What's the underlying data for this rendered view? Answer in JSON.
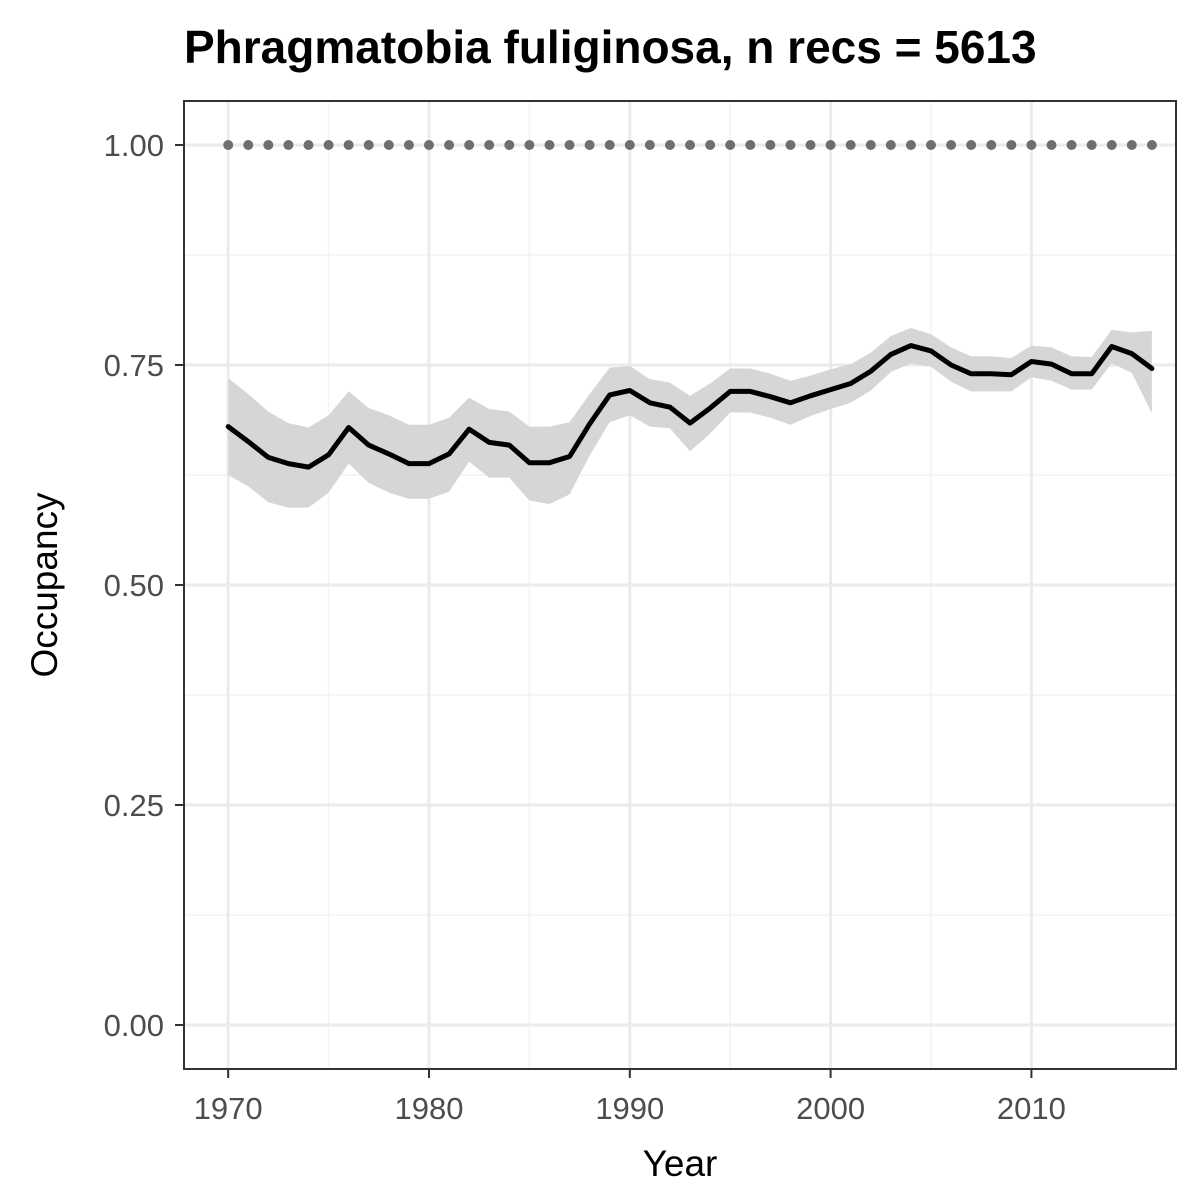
{
  "chart_data": {
    "type": "line",
    "title": "Phragmatobia fuliginosa, n recs = 5613",
    "xlabel": "Year",
    "ylabel": "Occupancy",
    "xlim": [
      1967.8,
      2017.2
    ],
    "ylim": [
      -0.05,
      1.05
    ],
    "x_ticks": [
      1970,
      1980,
      1990,
      2000,
      2010
    ],
    "y_ticks": [
      0.0,
      0.25,
      0.5,
      0.75,
      1.0
    ],
    "y_tick_labels": [
      "0.00",
      "0.25",
      "0.50",
      "0.75",
      "1.00"
    ],
    "grid": true,
    "theme": "bw",
    "colors": {
      "line": "#000000",
      "ribbon": "#d6d6d6",
      "dots": "#6e6e6e",
      "grid_major": "#ebebeb",
      "grid_minor": "#f3f3f3",
      "panel_border": "#333333"
    },
    "series": [
      {
        "role": "mean",
        "x": [
          1970,
          1971,
          1972,
          1973,
          1974,
          1975,
          1976,
          1977,
          1978,
          1979,
          1980,
          1981,
          1982,
          1983,
          1984,
          1985,
          1986,
          1987,
          1988,
          1989,
          1990,
          1991,
          1992,
          1993,
          1994,
          1995,
          1996,
          1997,
          1998,
          1999,
          2000,
          2001,
          2002,
          2003,
          2004,
          2005,
          2006,
          2007,
          2008,
          2009,
          2010,
          2011,
          2012,
          2013,
          2014,
          2015,
          2016
        ],
        "values": [
          0.68,
          0.663,
          0.645,
          0.638,
          0.634,
          0.648,
          0.679,
          0.659,
          0.649,
          0.638,
          0.638,
          0.649,
          0.677,
          0.662,
          0.659,
          0.639,
          0.639,
          0.646,
          0.683,
          0.716,
          0.721,
          0.707,
          0.702,
          0.684,
          0.701,
          0.72,
          0.72,
          0.714,
          0.707,
          0.715,
          0.722,
          0.729,
          0.743,
          0.762,
          0.772,
          0.766,
          0.75,
          0.74,
          0.74,
          0.739,
          0.754,
          0.751,
          0.74,
          0.74,
          0.771,
          0.763,
          0.746
        ]
      },
      {
        "role": "upper",
        "x": [
          1970,
          1971,
          1972,
          1973,
          1974,
          1975,
          1976,
          1977,
          1978,
          1979,
          1980,
          1981,
          1982,
          1983,
          1984,
          1985,
          1986,
          1987,
          1988,
          1989,
          1990,
          1991,
          1992,
          1993,
          1994,
          1995,
          1996,
          1997,
          1998,
          1999,
          2000,
          2001,
          2002,
          2003,
          2004,
          2005,
          2006,
          2007,
          2008,
          2009,
          2010,
          2011,
          2012,
          2013,
          2014,
          2015,
          2016
        ],
        "values": [
          0.735,
          0.717,
          0.697,
          0.684,
          0.679,
          0.693,
          0.72,
          0.701,
          0.693,
          0.682,
          0.682,
          0.69,
          0.713,
          0.7,
          0.697,
          0.68,
          0.68,
          0.685,
          0.717,
          0.747,
          0.749,
          0.734,
          0.73,
          0.715,
          0.729,
          0.746,
          0.746,
          0.74,
          0.732,
          0.738,
          0.745,
          0.751,
          0.764,
          0.783,
          0.792,
          0.785,
          0.77,
          0.76,
          0.76,
          0.758,
          0.772,
          0.77,
          0.76,
          0.759,
          0.79,
          0.787,
          0.789
        ]
      },
      {
        "role": "lower",
        "x": [
          1970,
          1971,
          1972,
          1973,
          1974,
          1975,
          1976,
          1977,
          1978,
          1979,
          1980,
          1981,
          1982,
          1983,
          1984,
          1985,
          1986,
          1987,
          1988,
          1989,
          1990,
          1991,
          1992,
          1993,
          1994,
          1995,
          1996,
          1997,
          1998,
          1999,
          2000,
          2001,
          2002,
          2003,
          2004,
          2005,
          2006,
          2007,
          2008,
          2009,
          2010,
          2011,
          2012,
          2013,
          2014,
          2015,
          2016
        ],
        "values": [
          0.625,
          0.612,
          0.594,
          0.588,
          0.588,
          0.605,
          0.638,
          0.616,
          0.605,
          0.598,
          0.598,
          0.606,
          0.64,
          0.622,
          0.622,
          0.596,
          0.592,
          0.603,
          0.647,
          0.685,
          0.693,
          0.68,
          0.678,
          0.652,
          0.672,
          0.696,
          0.696,
          0.69,
          0.682,
          0.692,
          0.7,
          0.707,
          0.721,
          0.742,
          0.752,
          0.748,
          0.731,
          0.72,
          0.72,
          0.72,
          0.736,
          0.732,
          0.722,
          0.722,
          0.752,
          0.741,
          0.695
        ]
      },
      {
        "role": "reference-dots",
        "x": [
          1970,
          1971,
          1972,
          1973,
          1974,
          1975,
          1976,
          1977,
          1978,
          1979,
          1980,
          1981,
          1982,
          1983,
          1984,
          1985,
          1986,
          1987,
          1988,
          1989,
          1990,
          1991,
          1992,
          1993,
          1994,
          1995,
          1996,
          1997,
          1998,
          1999,
          2000,
          2001,
          2002,
          2003,
          2004,
          2005,
          2006,
          2007,
          2008,
          2009,
          2010,
          2011,
          2012,
          2013,
          2014,
          2015,
          2016
        ],
        "values": [
          1,
          1,
          1,
          1,
          1,
          1,
          1,
          1,
          1,
          1,
          1,
          1,
          1,
          1,
          1,
          1,
          1,
          1,
          1,
          1,
          1,
          1,
          1,
          1,
          1,
          1,
          1,
          1,
          1,
          1,
          1,
          1,
          1,
          1,
          1,
          1,
          1,
          1,
          1,
          1,
          1,
          1,
          1,
          1,
          1,
          1,
          1
        ]
      }
    ]
  }
}
